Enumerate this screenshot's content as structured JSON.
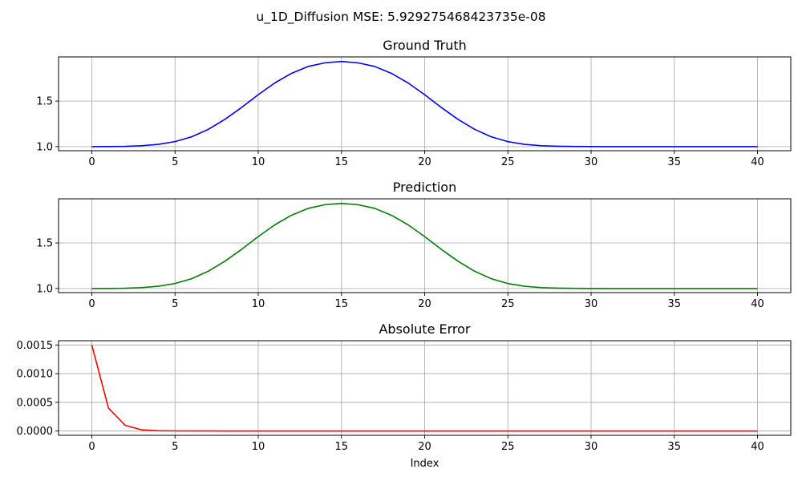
{
  "figure_title": "u_1D_Diffusion MSE: 5.929275468423735e-08",
  "chart_data": [
    {
      "type": "line",
      "title": "Ground Truth",
      "xlabel": "",
      "ylabel": "",
      "grid": true,
      "color": "#0000ff",
      "xlim": [
        -2,
        42
      ],
      "ylim": [
        0.955,
        1.985
      ],
      "xticks": [
        0,
        5,
        10,
        15,
        20,
        25,
        30,
        35,
        40
      ],
      "xtick_labels": [
        "0",
        "5",
        "10",
        "15",
        "20",
        "25",
        "30",
        "35",
        "40"
      ],
      "yticks": [
        1.0,
        1.5
      ],
      "ytick_labels": [
        "1.0",
        "1.5"
      ],
      "x": [
        0,
        1,
        2,
        3,
        4,
        5,
        6,
        7,
        8,
        9,
        10,
        11,
        12,
        13,
        14,
        15,
        16,
        17,
        18,
        19,
        20,
        21,
        22,
        23,
        24,
        25,
        26,
        27,
        28,
        29,
        30,
        31,
        32,
        33,
        34,
        35,
        36,
        37,
        38,
        39,
        40
      ],
      "y": [
        1.0,
        1.001,
        1.003,
        1.01,
        1.025,
        1.055,
        1.108,
        1.19,
        1.3,
        1.43,
        1.57,
        1.7,
        1.805,
        1.88,
        1.92,
        1.935,
        1.92,
        1.88,
        1.805,
        1.7,
        1.57,
        1.43,
        1.3,
        1.19,
        1.108,
        1.055,
        1.025,
        1.01,
        1.004,
        1.002,
        1.001,
        1.0,
        1.0,
        1.0,
        1.0,
        1.0,
        1.0,
        1.0,
        1.0,
        1.0,
        1.0
      ]
    },
    {
      "type": "line",
      "title": "Prediction",
      "xlabel": "",
      "ylabel": "",
      "grid": true,
      "color": "#008000",
      "xlim": [
        -2,
        42
      ],
      "ylim": [
        0.955,
        1.985
      ],
      "xticks": [
        0,
        5,
        10,
        15,
        20,
        25,
        30,
        35,
        40
      ],
      "xtick_labels": [
        "0",
        "5",
        "10",
        "15",
        "20",
        "25",
        "30",
        "35",
        "40"
      ],
      "yticks": [
        1.0,
        1.5
      ],
      "ytick_labels": [
        "1.0",
        "1.5"
      ],
      "x": [
        0,
        1,
        2,
        3,
        4,
        5,
        6,
        7,
        8,
        9,
        10,
        11,
        12,
        13,
        14,
        15,
        16,
        17,
        18,
        19,
        20,
        21,
        22,
        23,
        24,
        25,
        26,
        27,
        28,
        29,
        30,
        31,
        32,
        33,
        34,
        35,
        36,
        37,
        38,
        39,
        40
      ],
      "y": [
        1.0,
        1.001,
        1.003,
        1.01,
        1.025,
        1.055,
        1.108,
        1.19,
        1.3,
        1.43,
        1.57,
        1.7,
        1.805,
        1.88,
        1.92,
        1.935,
        1.92,
        1.88,
        1.805,
        1.7,
        1.57,
        1.43,
        1.3,
        1.19,
        1.108,
        1.055,
        1.025,
        1.01,
        1.004,
        1.002,
        1.001,
        1.0,
        1.0,
        1.0,
        1.0,
        1.0,
        1.0,
        1.0,
        1.0,
        1.0,
        1.0
      ]
    },
    {
      "type": "line",
      "title": "Absolute Error",
      "xlabel": "Index",
      "ylabel": "",
      "grid": true,
      "color": "#ff0000",
      "xlim": [
        -2,
        42
      ],
      "ylim": [
        -7.5e-05,
        0.001575
      ],
      "xticks": [
        0,
        5,
        10,
        15,
        20,
        25,
        30,
        35,
        40
      ],
      "xtick_labels": [
        "0",
        "5",
        "10",
        "15",
        "20",
        "25",
        "30",
        "35",
        "40"
      ],
      "yticks": [
        0.0,
        0.0005,
        0.001,
        0.0015
      ],
      "ytick_labels": [
        "0.0000",
        "0.0005",
        "0.0010",
        "0.0015"
      ],
      "x": [
        0,
        1,
        2,
        3,
        4,
        5,
        6,
        7,
        8,
        9,
        10,
        11,
        12,
        13,
        14,
        15,
        16,
        17,
        18,
        19,
        20,
        21,
        22,
        23,
        24,
        25,
        26,
        27,
        28,
        29,
        30,
        31,
        32,
        33,
        34,
        35,
        36,
        37,
        38,
        39,
        40
      ],
      "y": [
        0.0015,
        0.0004,
        0.0001,
        2e-05,
        5e-06,
        2e-06,
        1e-06,
        1e-06,
        0,
        0,
        0,
        0,
        0,
        0,
        0,
        0,
        0,
        0,
        0,
        0,
        0,
        0,
        0,
        0,
        0,
        0,
        0,
        0,
        0,
        0,
        0,
        0,
        0,
        0,
        0,
        0,
        0,
        0,
        0,
        0,
        0
      ]
    }
  ]
}
